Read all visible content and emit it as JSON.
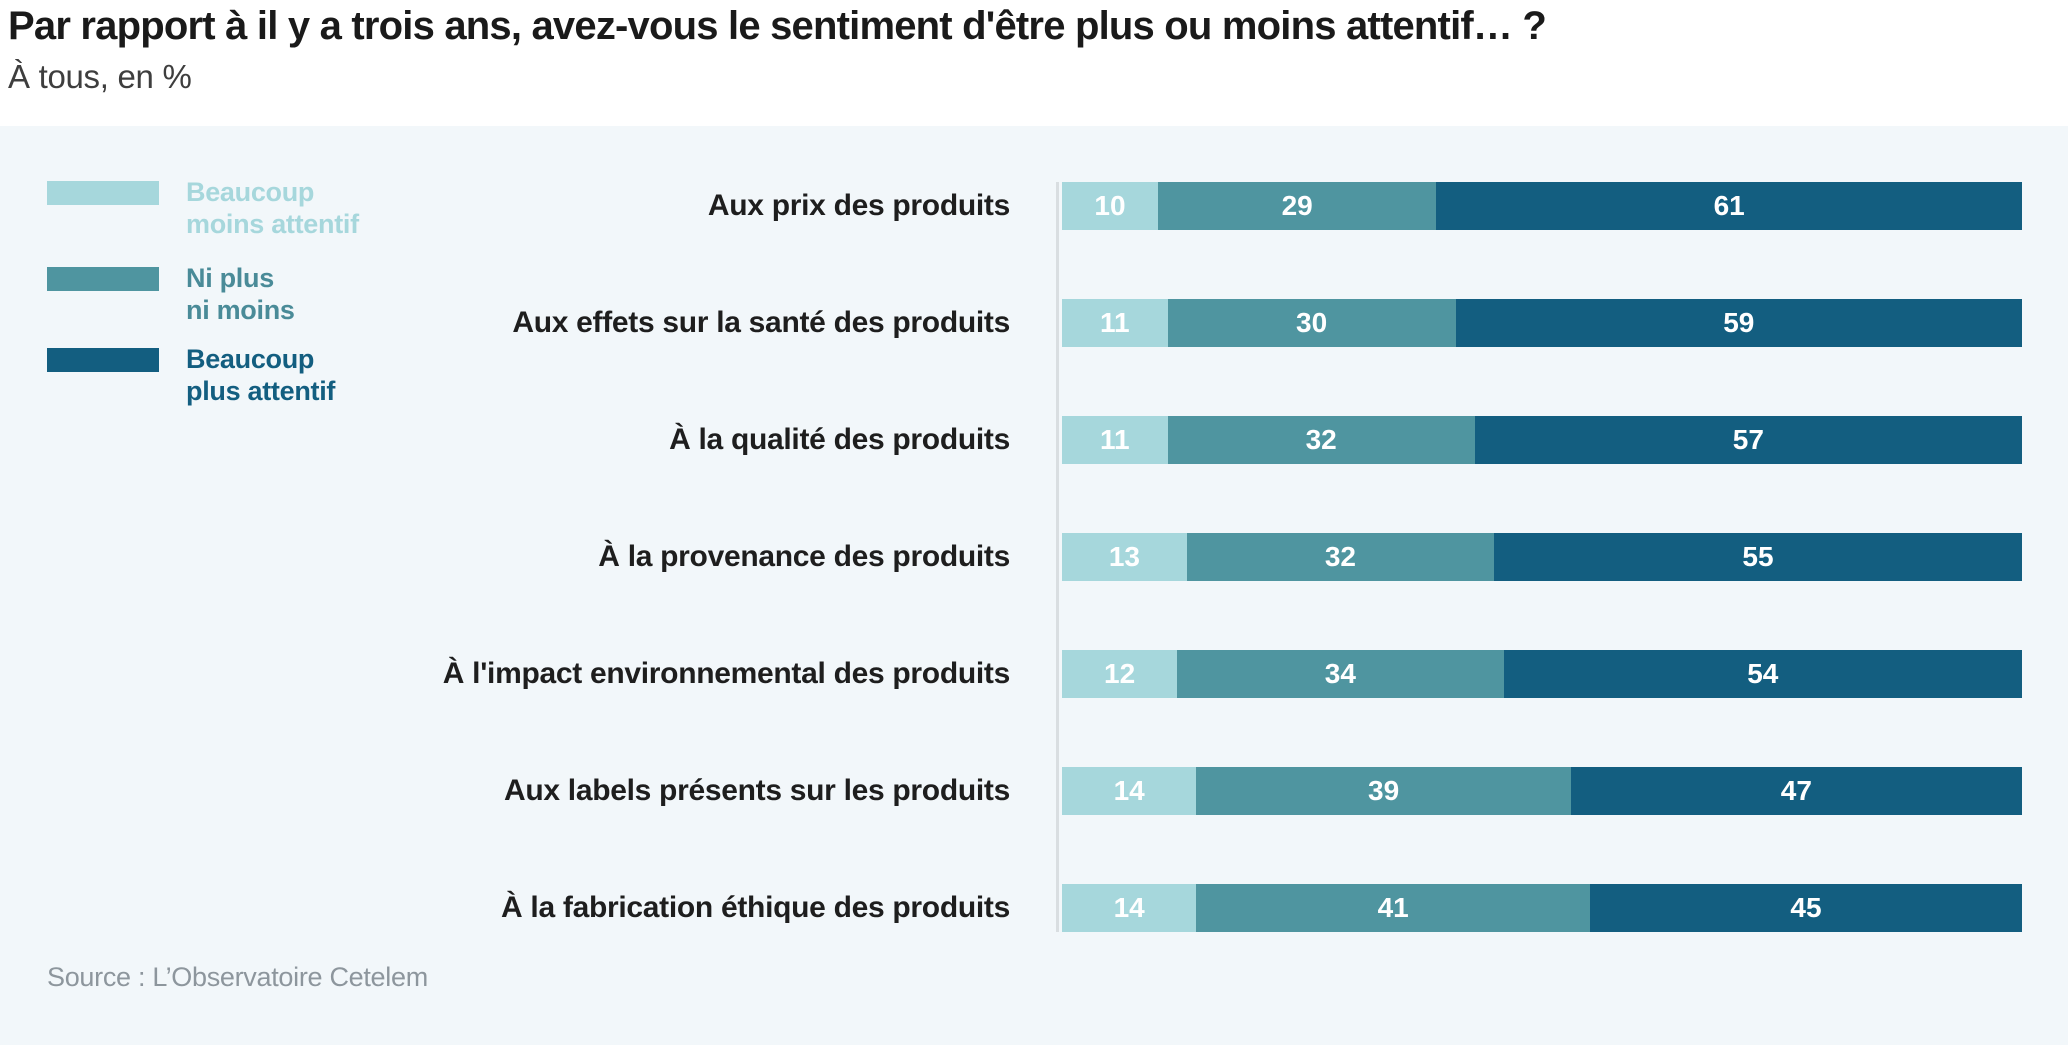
{
  "header": {
    "title": "Par rapport à il y a trois ans, avez-vous le sentiment d'être plus ou moins attentif… ?",
    "subtitle": "À tous, en %"
  },
  "legend": {
    "items": [
      {
        "line1": "Beaucoup",
        "line2": "moins attentif",
        "color": "#a6d7dc"
      },
      {
        "line1": "Ni plus",
        "line2": "ni moins",
        "color": "#4f95a0"
      },
      {
        "line1": "Beaucoup",
        "line2": "plus attentif",
        "color": "#135e80"
      }
    ]
  },
  "footer": {
    "source": "Source : L’Observatoire Cetelem"
  },
  "chart_data": {
    "type": "bar",
    "stacked": true,
    "orientation": "horizontal",
    "unit": "%",
    "xlim": [
      0,
      100
    ],
    "grid": false,
    "legend_position": "top-left",
    "value_labels": "inside segments, white bold",
    "title": "Par rapport à il y a trois ans, avez-vous le sentiment d'être plus ou moins attentif… ?",
    "subtitle": "À tous, en %",
    "categories": [
      "Aux prix des produits",
      "Aux effets sur la santé des produits",
      "À la qualité des produits",
      "À la provenance des produits",
      "À l'impact environnemental des produits",
      "Aux labels présents sur les produits",
      "À la fabrication éthique des produits"
    ],
    "series": [
      {
        "name": "Beaucoup moins attentif",
        "color": "#a6d7dc",
        "values": [
          10,
          11,
          11,
          13,
          12,
          14,
          14
        ]
      },
      {
        "name": "Ni plus ni moins",
        "color": "#4f95a0",
        "values": [
          29,
          30,
          32,
          32,
          34,
          39,
          41
        ]
      },
      {
        "name": "Beaucoup plus attentif",
        "color": "#135e80",
        "values": [
          61,
          59,
          57,
          55,
          54,
          47,
          45
        ]
      }
    ]
  }
}
